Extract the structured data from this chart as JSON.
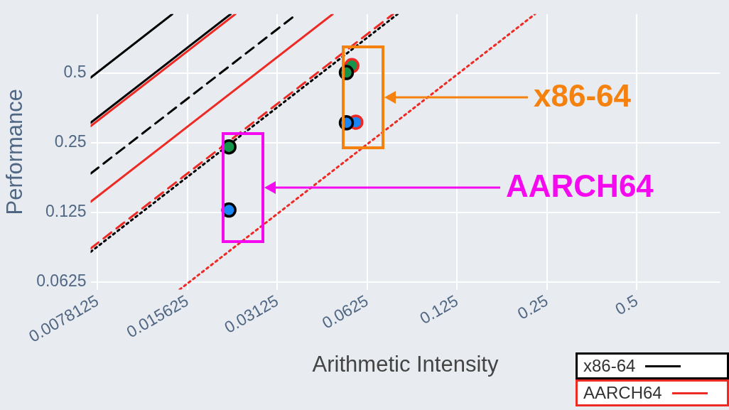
{
  "chart_data": {
    "type": "line",
    "xlabel": "Arithmetic Intensity",
    "ylabel": "Performance",
    "log": "xy",
    "grid": true,
    "legend": "bottom right",
    "xlim": [
      0.0074,
      0.95
    ],
    "ylim": [
      0.058,
      0.9
    ],
    "xticks": [
      0.0078125,
      0.015625,
      0.03125,
      0.0625,
      0.125,
      0.25,
      0.5
    ],
    "yticks": [
      0.0625,
      0.125,
      0.25,
      0.5
    ],
    "series": [
      {
        "color": "#000000",
        "line_style": "solid",
        "x": [
          0.0074,
          0.0139
        ],
        "values": [
          0.478,
          0.9
        ]
      },
      {
        "name": "x86-64",
        "color": "#000000",
        "line_style": "solid",
        "x": [
          0.0074,
          0.0218
        ],
        "values": [
          0.305,
          0.9
        ]
      },
      {
        "name": "AARCH64",
        "color": "#ee2a24",
        "line_style": "solid",
        "x": [
          0.0074,
          0.0226
        ],
        "values": [
          0.295,
          0.9
        ]
      },
      {
        "color": "#000000",
        "line_style": "dashed",
        "x": [
          0.0074,
          0.0363
        ],
        "values": [
          0.184,
          0.9
        ]
      },
      {
        "color": "#ee2a24",
        "line_style": "solid",
        "x": [
          0.0074,
          0.0479
        ],
        "values": [
          0.139,
          0.9
        ]
      },
      {
        "color": "#ee2a24",
        "line_style": "dashed",
        "x": [
          0.0074,
          0.0763
        ],
        "values": [
          0.0873,
          0.9
        ]
      },
      {
        "color": "#000000",
        "line_style": "dotted",
        "x": [
          0.0074,
          0.079
        ],
        "values": [
          0.0844,
          0.9
        ]
      },
      {
        "color": "#ee2a24",
        "line_style": "dotted",
        "x": [
          0.0147,
          0.228
        ],
        "values": [
          0.058,
          0.9
        ]
      },
      {
        "type": "scatter",
        "marker": "circle",
        "color": "#15954a",
        "x": [
          0.0555
        ],
        "values": [
          0.539
        ]
      },
      {
        "type": "scatter",
        "marker": "circle",
        "color": "#1a86f5",
        "x": [
          0.0572
        ],
        "values": [
          0.307
        ]
      },
      {
        "type": "scatter",
        "marker": "circle",
        "color": "#15954a",
        "x": [
          0.0215,
          0.0532
        ],
        "values": [
          0.24,
          0.503
        ]
      },
      {
        "type": "scatter",
        "marker": "circle",
        "color": "#1a86f5",
        "x": [
          0.0215,
          0.0532
        ],
        "values": [
          0.128,
          0.305
        ]
      }
    ],
    "annotations": [
      "x86-64",
      "AARCH64"
    ]
  }
}
